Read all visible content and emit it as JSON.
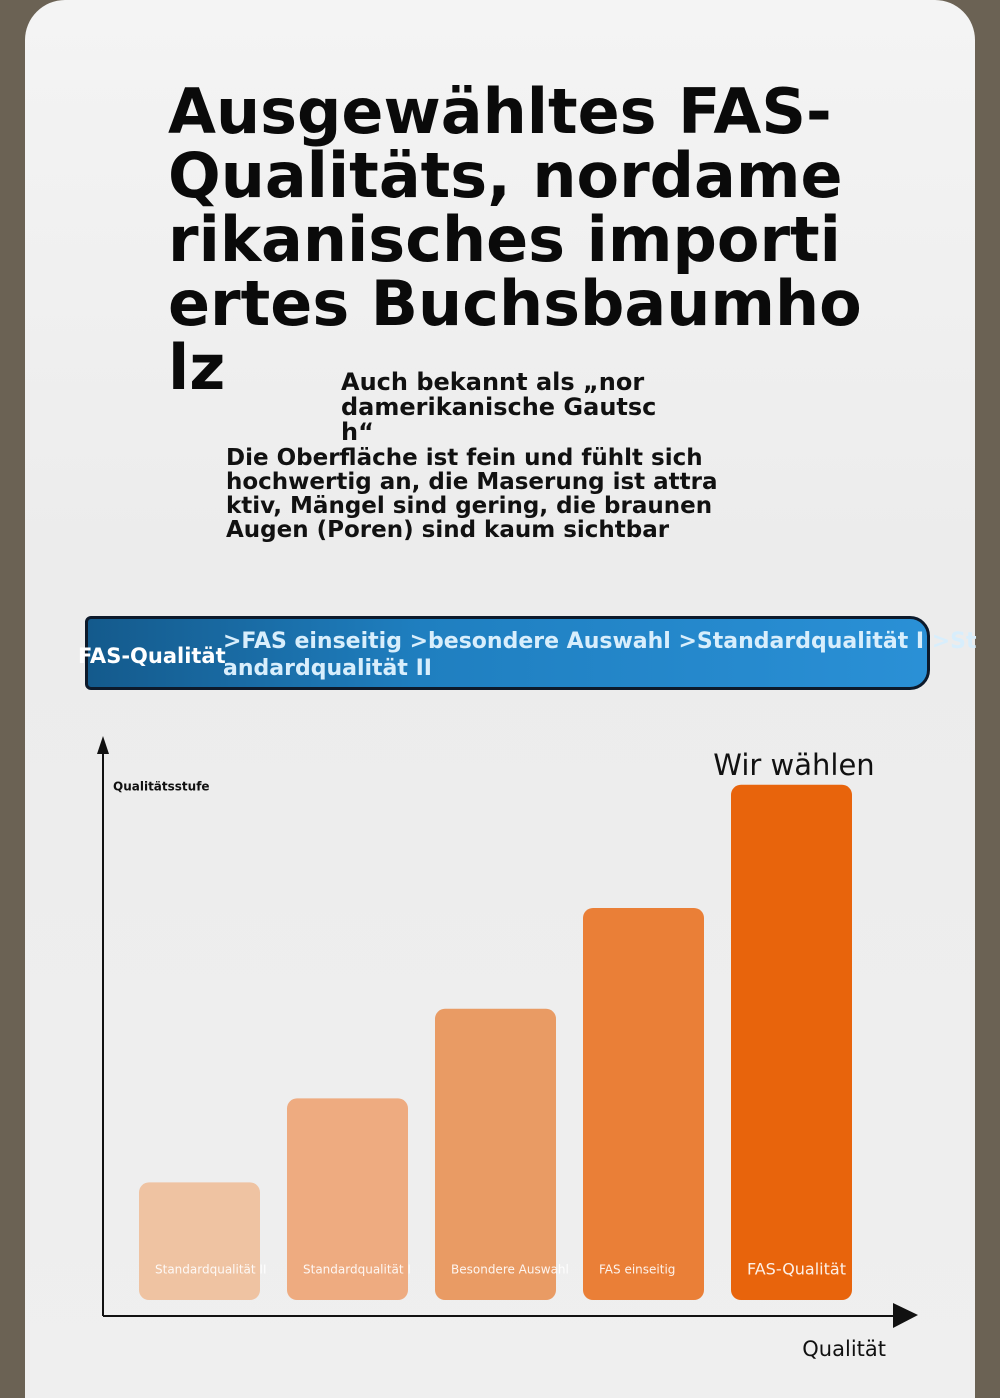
{
  "header": {
    "title": "Ausgewähltes FAS-Qualitäts, nordamerikanisches importiertes Buchsbaumholz",
    "subtitle": "Auch bekannt als „nordamerikanische Gautsch“",
    "description": "Die Oberfläche ist fein und fühlt sich hochwertig an, die Maserung ist attraktiv, Mängel sind gering, die braunen Augen (Poren) sind kaum sichtbar"
  },
  "banner": {
    "label": "FAS-Qualität",
    "text": ">FAS einseitig >besondere Auswahl >Standardqualität I >Standardqualität II"
  },
  "chart_data": {
    "type": "bar",
    "y_label": "Qualitätsstufe",
    "x_label": "Qualität",
    "annotation": "Wir wählen",
    "categories": [
      "Standardqualität II",
      "Standardqualität I",
      "Besondere Auswahl",
      "FAS einseitig",
      "FAS-Qualität"
    ],
    "values": [
      21,
      36,
      52,
      70,
      92
    ],
    "colors": [
      "#efc3a2",
      "#eeab80",
      "#e99b64",
      "#ea7f37",
      "#e8640c"
    ],
    "ylim": [
      0,
      100
    ]
  }
}
